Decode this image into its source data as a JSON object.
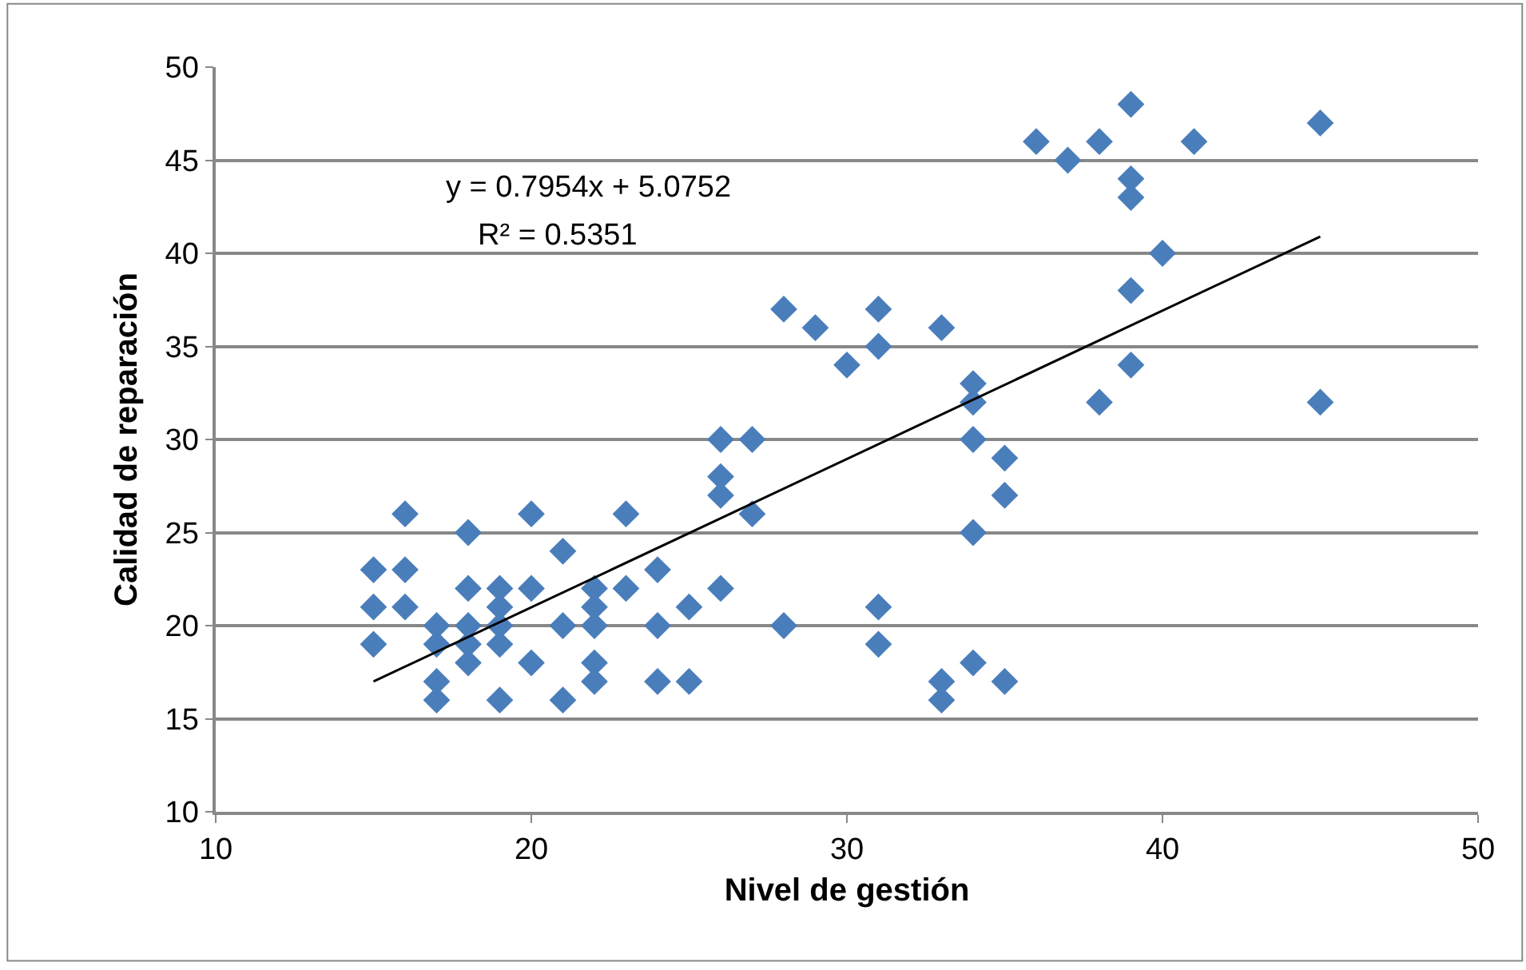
{
  "chart_data": {
    "type": "scatter",
    "xlabel": "Nivel de gestión",
    "ylabel": "Calidad de reparación",
    "annotations": [
      "y = 0.7954x + 5.0752",
      "R² = 0.5351"
    ],
    "marker": "diamond",
    "grid": "y",
    "xlim": [
      10,
      50
    ],
    "xticks": [
      10,
      20,
      30,
      40,
      50
    ],
    "ylim": [
      10,
      50
    ],
    "yticks": [
      10,
      15,
      20,
      25,
      30,
      35,
      40,
      45,
      50
    ],
    "series": [
      {
        "color": "#4a7ebb",
        "x": [
          15,
          15,
          15,
          16,
          16,
          16,
          17,
          17,
          17,
          17,
          18,
          18,
          18,
          18,
          18,
          19,
          19,
          19,
          19,
          19,
          20,
          20,
          20,
          21,
          21,
          21,
          22,
          22,
          22,
          22,
          22,
          23,
          23,
          24,
          24,
          24,
          25,
          25,
          26,
          26,
          26,
          26,
          27,
          27,
          28,
          28,
          29,
          30,
          31,
          31,
          31,
          31,
          33,
          33,
          33,
          34,
          34,
          34,
          34,
          34,
          35,
          35,
          35,
          36,
          37,
          38,
          38,
          39,
          39,
          39,
          39,
          39,
          40,
          41,
          45,
          45
        ],
        "values": [
          23,
          21,
          19,
          26,
          23,
          21,
          20,
          19,
          17,
          16,
          25,
          22,
          20,
          19,
          18,
          22,
          21,
          20,
          19,
          16,
          26,
          22,
          18,
          24,
          20,
          16,
          22,
          21,
          20,
          18,
          17,
          26,
          22,
          23,
          20,
          17,
          21,
          17,
          30,
          28,
          27,
          22,
          30,
          26,
          37,
          20,
          36,
          34,
          37,
          35,
          21,
          19,
          36,
          17,
          16,
          33,
          32,
          30,
          25,
          18,
          29,
          27,
          17,
          46,
          45,
          46,
          32,
          48,
          44,
          43,
          38,
          34,
          40,
          46,
          47,
          32
        ]
      },
      {
        "type": "line",
        "color": "#000000",
        "marker": "none",
        "x": [
          15,
          45
        ],
        "values": [
          17.0,
          40.9
        ]
      }
    ]
  }
}
